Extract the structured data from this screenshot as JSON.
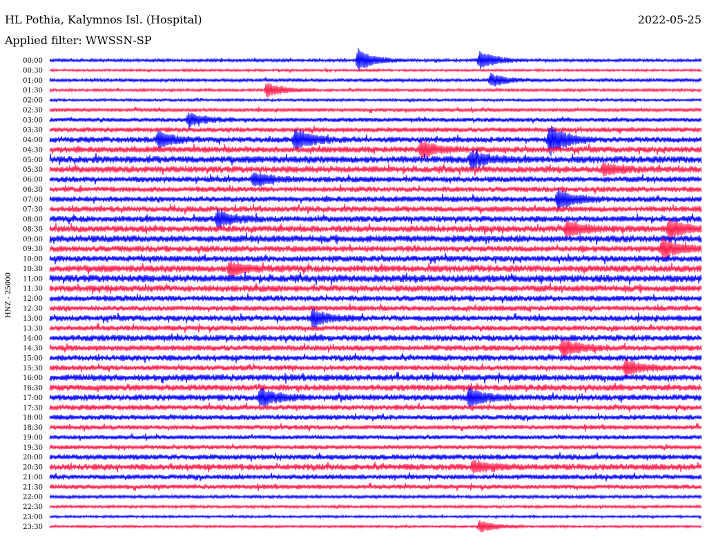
{
  "header": {
    "station": "HL Pothia, Kalymnos Isl. (Hospital)",
    "date": "2022-05-25",
    "filter": "Applied filter: WWSSN-SP"
  },
  "channel_label": "HNZ - 25000",
  "colors": {
    "even_row": "#0000ff",
    "odd_row": "#ff1a4a"
  },
  "chart_data": {
    "type": "line",
    "title": "HL Pothia, Kalymnos Isl. (Hospital)",
    "subtitle": "Applied filter: WWSSN-SP",
    "ylabel": "HNZ - 25000",
    "row_labels": [
      "00:00",
      "00:30",
      "01:00",
      "01:30",
      "02:00",
      "02:30",
      "03:00",
      "03:30",
      "04:00",
      "04:30",
      "05:00",
      "05:30",
      "06:00",
      "06:30",
      "07:00",
      "07:30",
      "08:00",
      "08:30",
      "09:00",
      "09:30",
      "10:00",
      "10:30",
      "11:00",
      "11:30",
      "12:00",
      "12:30",
      "13:00",
      "13:30",
      "14:00",
      "14:30",
      "15:00",
      "15:30",
      "16:00",
      "16:30",
      "17:00",
      "17:30",
      "18:00",
      "18:30",
      "19:00",
      "19:30",
      "20:00",
      "20:30",
      "21:00",
      "21:30",
      "22:00",
      "22:30",
      "23:00",
      "23:30"
    ],
    "trace_minutes": 30,
    "base_amplitude": [
      1.5,
      1.2,
      1.6,
      1.4,
      1.3,
      1.8,
      2.2,
      2.6,
      3.0,
      3.2,
      3.6,
      3.4,
      3.0,
      2.8,
      3.0,
      3.0,
      3.2,
      3.4,
      3.6,
      3.2,
      3.2,
      3.6,
      3.8,
      3.4,
      3.0,
      2.8,
      3.0,
      2.8,
      3.2,
      3.0,
      3.0,
      2.8,
      3.4,
      3.2,
      3.2,
      2.8,
      2.6,
      2.4,
      2.2,
      2.2,
      2.8,
      3.2,
      2.6,
      2.4,
      1.6,
      1.4,
      1.2,
      1.2
    ],
    "events": [
      {
        "row": 0,
        "minute": 14.2,
        "amplitude": 16
      },
      {
        "row": 0,
        "minute": 19.8,
        "amplitude": 14
      },
      {
        "row": 2,
        "minute": 20.3,
        "amplitude": 10
      },
      {
        "row": 3,
        "minute": 10.0,
        "amplitude": 12
      },
      {
        "row": 6,
        "minute": 6.4,
        "amplitude": 10
      },
      {
        "row": 8,
        "minute": 5.0,
        "amplitude": 12
      },
      {
        "row": 8,
        "minute": 11.3,
        "amplitude": 16
      },
      {
        "row": 8,
        "minute": 23.0,
        "amplitude": 24
      },
      {
        "row": 9,
        "minute": 17.1,
        "amplitude": 12
      },
      {
        "row": 10,
        "minute": 19.4,
        "amplitude": 12
      },
      {
        "row": 11,
        "minute": 25.5,
        "amplitude": 8
      },
      {
        "row": 12,
        "minute": 9.4,
        "amplitude": 10
      },
      {
        "row": 14,
        "minute": 23.4,
        "amplitude": 14
      },
      {
        "row": 16,
        "minute": 7.7,
        "amplitude": 12
      },
      {
        "row": 17,
        "minute": 23.8,
        "amplitude": 12
      },
      {
        "row": 17,
        "minute": 28.5,
        "amplitude": 14
      },
      {
        "row": 19,
        "minute": 28.2,
        "amplitude": 14
      },
      {
        "row": 21,
        "minute": 8.3,
        "amplitude": 10
      },
      {
        "row": 26,
        "minute": 12.1,
        "amplitude": 12
      },
      {
        "row": 29,
        "minute": 23.6,
        "amplitude": 14
      },
      {
        "row": 31,
        "minute": 26.5,
        "amplitude": 12
      },
      {
        "row": 34,
        "minute": 9.7,
        "amplitude": 14
      },
      {
        "row": 34,
        "minute": 19.3,
        "amplitude": 13
      },
      {
        "row": 41,
        "minute": 19.5,
        "amplitude": 9
      },
      {
        "row": 47,
        "minute": 19.8,
        "amplitude": 9
      }
    ]
  }
}
